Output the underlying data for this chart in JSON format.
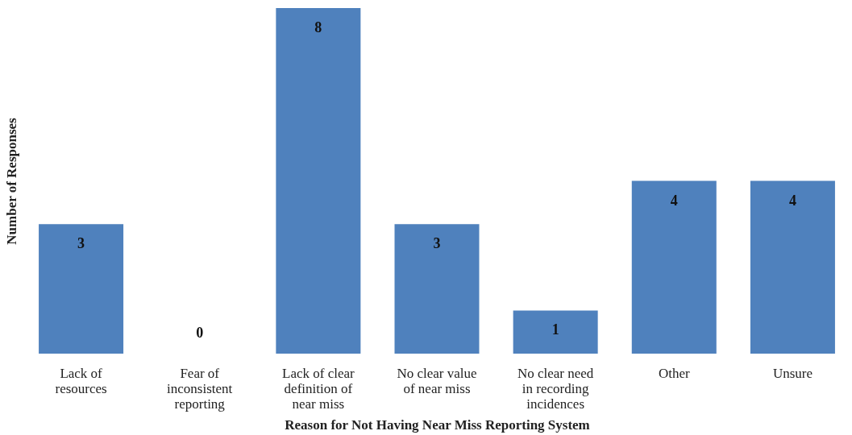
{
  "chart_data": {
    "type": "bar",
    "xlabel": "Reason for Not Having Near Miss Reporting System",
    "ylabel": "Number of Responses",
    "categories": [
      "Lack of resources",
      "Fear of inconsistent reporting",
      "Lack of clear definition of near miss",
      "No clear value of near miss",
      "No clear need in recording incidences",
      "Other",
      "Unsure"
    ],
    "values": [
      3,
      0,
      8,
      3,
      1,
      4,
      4
    ],
    "color": "#4f81bd",
    "data_labels": true,
    "grid": false
  }
}
